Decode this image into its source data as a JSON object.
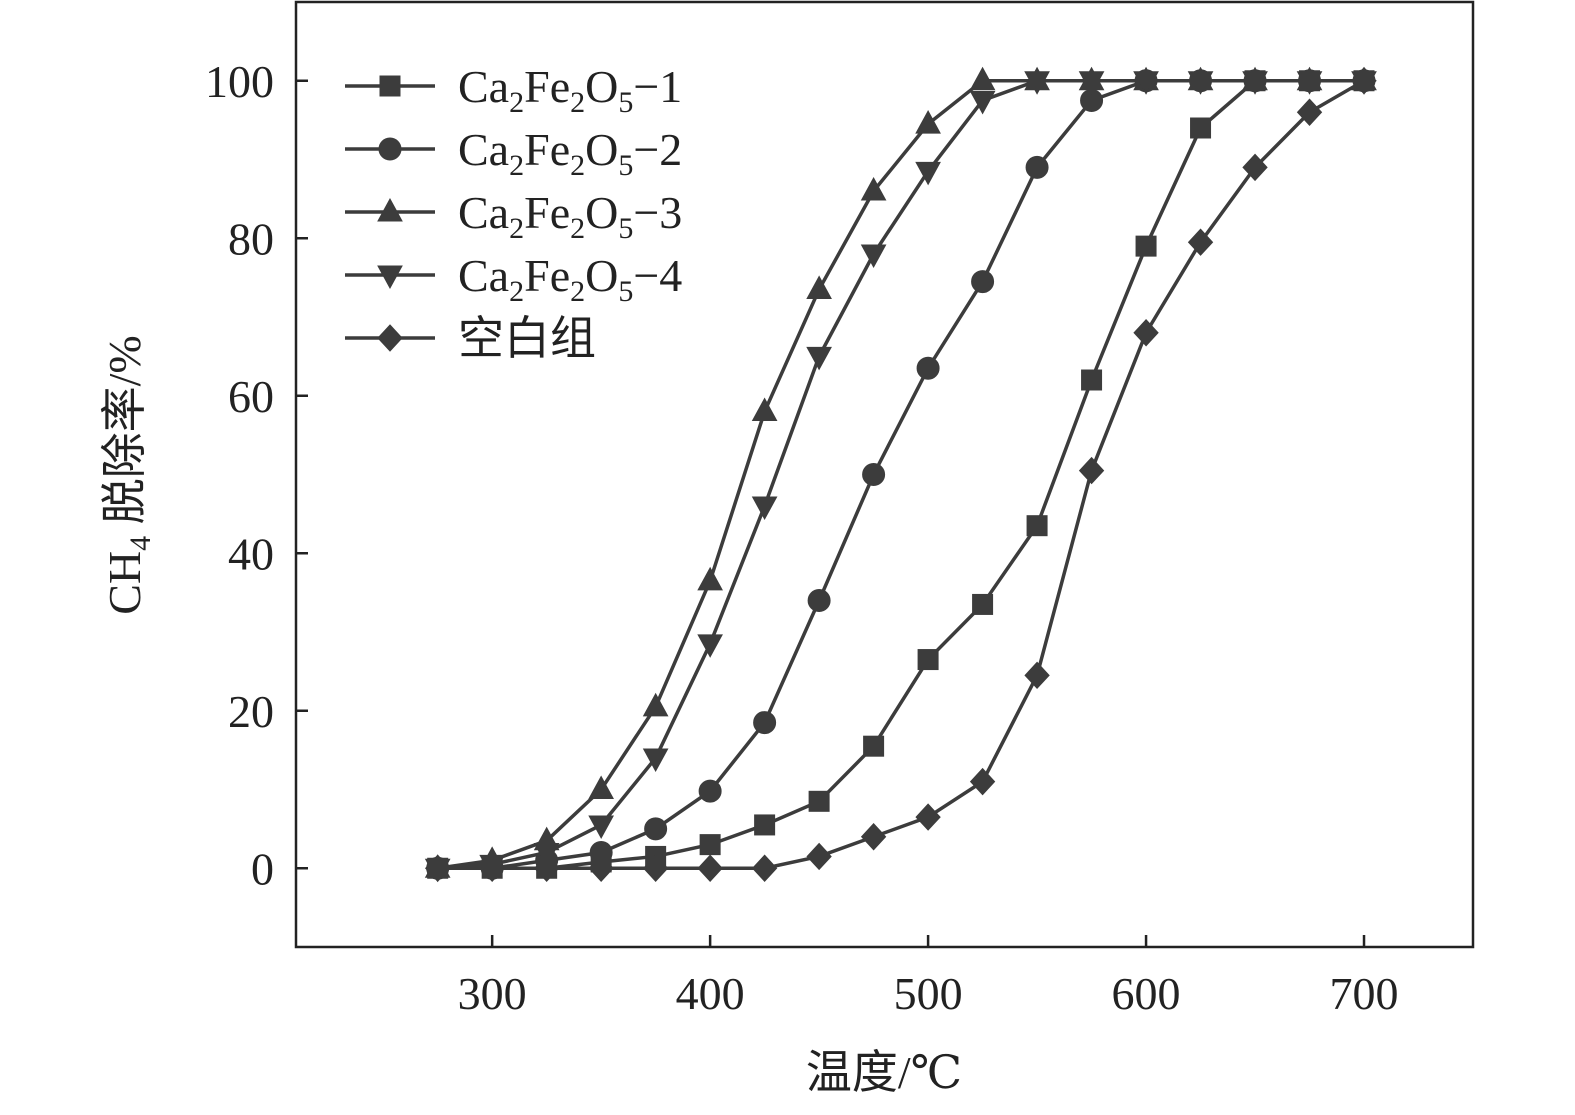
{
  "chart_data": {
    "type": "line",
    "title": "",
    "xlabel": "温度/℃",
    "ylabel_parts": {
      "pre": "CH",
      "sub": "4",
      "post": " 脱除率/%"
    },
    "xlim": [
      210,
      750
    ],
    "ylim": [
      -10,
      110
    ],
    "xticks": [
      300,
      400,
      500,
      600,
      700
    ],
    "yticks": [
      0,
      20,
      40,
      60,
      80,
      100
    ],
    "grid": false,
    "legend_position": "top-left",
    "series": [
      {
        "legend": {
          "a": "Ca",
          "s1": "2",
          "b": "Fe",
          "s2": "2",
          "c": "O",
          "s3": "5",
          "d": "−1"
        },
        "marker": "square",
        "x": [
          275,
          300,
          325,
          350,
          375,
          400,
          425,
          450,
          475,
          500,
          525,
          550,
          575,
          600,
          625,
          650,
          675,
          700
        ],
        "y": [
          0,
          0,
          0,
          0.8,
          1.5,
          3,
          5.5,
          8.5,
          15.5,
          26.5,
          33.5,
          43.5,
          62,
          79,
          94,
          100,
          100,
          100
        ]
      },
      {
        "legend": {
          "a": "Ca",
          "s1": "2",
          "b": "Fe",
          "s2": "2",
          "c": "O",
          "s3": "5",
          "d": "−2"
        },
        "marker": "circle",
        "x": [
          275,
          300,
          325,
          350,
          375,
          400,
          425,
          450,
          475,
          500,
          525,
          550,
          575,
          600,
          625,
          650,
          675,
          700
        ],
        "y": [
          0,
          0,
          1,
          2,
          5,
          9.8,
          18.5,
          34,
          50,
          63.5,
          74.5,
          89,
          97.5,
          100,
          100,
          100,
          100,
          100
        ]
      },
      {
        "legend": {
          "a": "Ca",
          "s1": "2",
          "b": "Fe",
          "s2": "2",
          "c": "O",
          "s3": "5",
          "d": "−3"
        },
        "marker": "triangle-up",
        "x": [
          275,
          300,
          325,
          350,
          375,
          400,
          425,
          450,
          475,
          500,
          525,
          550,
          575,
          600,
          625,
          650,
          675,
          700
        ],
        "y": [
          0,
          1,
          3.5,
          10,
          20.5,
          36.5,
          58,
          73.5,
          86,
          94.5,
          100,
          100,
          100,
          100,
          100,
          100,
          100,
          100
        ]
      },
      {
        "legend": {
          "a": "Ca",
          "s1": "2",
          "b": "Fe",
          "s2": "2",
          "c": "O",
          "s3": "5",
          "d": "−4"
        },
        "marker": "triangle-down",
        "x": [
          275,
          300,
          325,
          350,
          375,
          400,
          425,
          450,
          475,
          500,
          525,
          550,
          575,
          600,
          625,
          650,
          675,
          700
        ],
        "y": [
          0,
          0.5,
          2,
          5.5,
          14,
          28.5,
          46,
          65,
          78,
          88.5,
          97.5,
          100,
          100,
          100,
          100,
          100,
          100,
          100
        ]
      },
      {
        "legend": {
          "a": "空白组",
          "s1": "",
          "b": "",
          "s2": "",
          "c": "",
          "s3": "",
          "d": ""
        },
        "marker": "diamond",
        "x": [
          275,
          300,
          325,
          350,
          375,
          400,
          425,
          450,
          475,
          500,
          525,
          550,
          575,
          600,
          625,
          650,
          675,
          700
        ],
        "y": [
          0,
          0,
          0,
          0,
          0,
          0,
          0,
          1.5,
          4,
          6.5,
          11,
          24.5,
          50.5,
          68,
          79.5,
          89,
          96,
          100
        ]
      }
    ]
  }
}
